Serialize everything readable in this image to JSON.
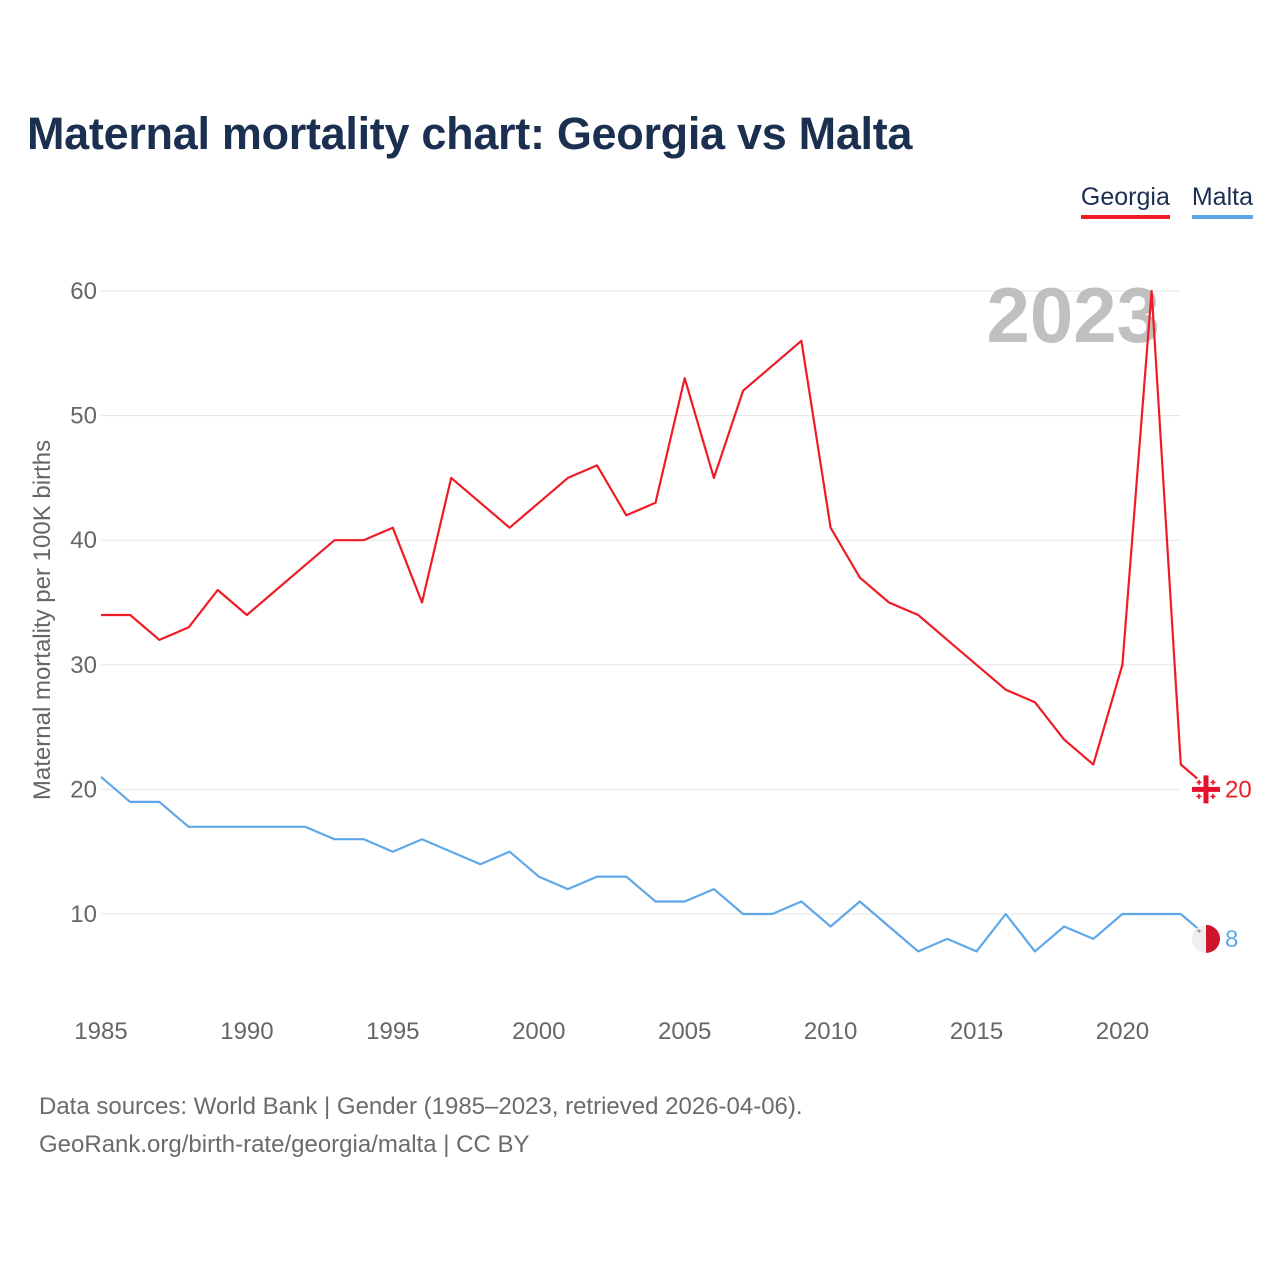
{
  "title": "Maternal mortality chart: Georgia vs Malta",
  "legend": [
    {
      "name": "Georgia",
      "color": "#ee1c25"
    },
    {
      "name": "Malta",
      "color": "#5fa8e8"
    }
  ],
  "footer": {
    "line1": "Data sources: World Bank | Gender (1985–2023, retrieved 2026-04-06).",
    "line2": "GeoRank.org/birth-rate/georgia/malta | CC BY"
  },
  "chart_data": {
    "type": "line",
    "title": "Maternal mortality chart: Georgia vs Malta",
    "xlabel": "",
    "ylabel": "Maternal mortality per 100K births",
    "year_label": "2023",
    "xlim": [
      1985,
      2023
    ],
    "ylim": [
      3,
      60
    ],
    "x_ticks": [
      1985,
      1990,
      1995,
      2000,
      2005,
      2010,
      2015,
      2020
    ],
    "y_ticks": [
      10,
      20,
      30,
      40,
      50,
      60
    ],
    "grid": true,
    "legend_position": "top-right",
    "x": [
      1985,
      1986,
      1987,
      1988,
      1989,
      1990,
      1991,
      1992,
      1993,
      1994,
      1995,
      1996,
      1997,
      1998,
      1999,
      2000,
      2001,
      2002,
      2003,
      2004,
      2005,
      2006,
      2007,
      2008,
      2009,
      2010,
      2011,
      2012,
      2013,
      2014,
      2015,
      2016,
      2017,
      2018,
      2019,
      2020,
      2021,
      2022,
      2023
    ],
    "series": [
      {
        "name": "Georgia",
        "color": "#ee1c25",
        "end_label": "20",
        "values": [
          34,
          34,
          32,
          33,
          36,
          34,
          36,
          38,
          40,
          40,
          41,
          35,
          45,
          43,
          41,
          43,
          45,
          46,
          42,
          43,
          53,
          45,
          52,
          54,
          56,
          41,
          37,
          35,
          34,
          32,
          30,
          28,
          27,
          24,
          22,
          30,
          60,
          22,
          20
        ]
      },
      {
        "name": "Malta",
        "color": "#5fa8e8",
        "end_label": "8",
        "values": [
          21,
          19,
          19,
          17,
          17,
          17,
          17,
          17,
          16,
          16,
          15,
          16,
          15,
          14,
          15,
          13,
          12,
          13,
          13,
          11,
          11,
          12,
          10,
          10,
          11,
          9,
          11,
          9,
          7,
          8,
          7,
          10,
          7,
          9,
          8,
          10,
          10,
          10,
          8
        ]
      }
    ]
  }
}
